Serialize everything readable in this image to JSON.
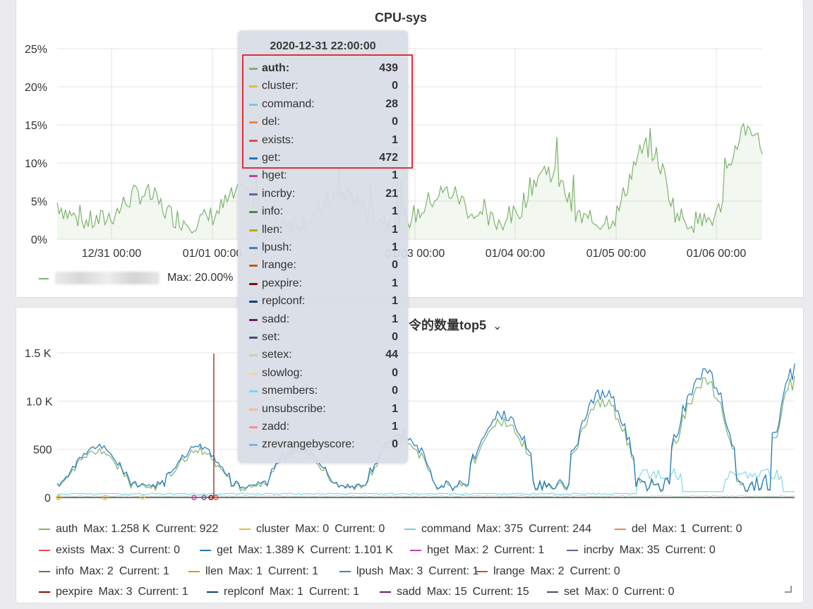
{
  "panel_cpu": {
    "title": "CPU-sys",
    "legend_max": "Max: 20.00%",
    "y_ticks": [
      "25%",
      "20%",
      "15%",
      "10%",
      "5%",
      "0%"
    ],
    "x_ticks": [
      "12/31 00:00",
      "01/01 00:00",
      "01/03 00:00",
      "01/04 00:00",
      "01/05 00:00",
      "01/06 00:00"
    ],
    "series_color": "#7eb26d"
  },
  "panel_cmd": {
    "title_fragment": "令的数量top5",
    "title_caret": "⌄",
    "y_ticks": [
      "1.5 K",
      "1.0 K",
      "500",
      "0"
    ],
    "legend": [
      {
        "name": "auth",
        "max": "Max: 1.258 K",
        "current": "Current: 922",
        "color": "#7eb26d"
      },
      {
        "name": "cluster",
        "max": "Max: 0",
        "current": "Current: 0",
        "color": "#eab839"
      },
      {
        "name": "command",
        "max": "Max: 375",
        "current": "Current: 244",
        "color": "#6ed0e0"
      },
      {
        "name": "del",
        "max": "Max: 1",
        "current": "Current: 0",
        "color": "#ef843c"
      },
      {
        "name": "exists",
        "max": "Max: 3",
        "current": "Current: 0",
        "color": "#e24d42"
      },
      {
        "name": "get",
        "max": "Max: 1.389 K",
        "current": "Current: 1.101 K",
        "color": "#1f78c1"
      },
      {
        "name": "hget",
        "max": "Max: 2",
        "current": "Current: 1",
        "color": "#ba43a9"
      },
      {
        "name": "incrby",
        "max": "Max: 35",
        "current": "Current: 0",
        "color": "#705da0"
      },
      {
        "name": "info",
        "max": "Max: 2",
        "current": "Current: 1",
        "color": "#508642"
      },
      {
        "name": "llen",
        "max": "Max: 1",
        "current": "Current: 1",
        "color": "#cca300"
      },
      {
        "name": "lpush",
        "max": "Max: 3",
        "current": "Current: 1",
        "color": "#447ebc"
      },
      {
        "name": "lrange",
        "max": "Max: 2",
        "current": "Current: 0",
        "color": "#c15c17"
      },
      {
        "name": "pexpire",
        "max": "Max: 3",
        "current": "Current: 1",
        "color": "#890f02"
      },
      {
        "name": "replconf",
        "max": "Max: 1",
        "current": "Current: 1",
        "color": "#0a437c"
      },
      {
        "name": "sadd",
        "max": "Max: 15",
        "current": "Current: 15",
        "color": "#6d1f62"
      },
      {
        "name": "set",
        "max": "Max: 0",
        "current": "Current: 0",
        "color": "#584477"
      }
    ]
  },
  "tooltip": {
    "date": "2020-12-31 22:00:00",
    "rows": [
      {
        "name": "auth:",
        "value": "439",
        "color": "#7eb26d"
      },
      {
        "name": "cluster:",
        "value": "0",
        "color": "#eab839"
      },
      {
        "name": "command:",
        "value": "28",
        "color": "#6ed0e0"
      },
      {
        "name": "del:",
        "value": "0",
        "color": "#ef843c"
      },
      {
        "name": "exists:",
        "value": "1",
        "color": "#e24d42"
      },
      {
        "name": "get:",
        "value": "472",
        "color": "#1f78c1"
      },
      {
        "name": "hget:",
        "value": "1",
        "color": "#ba43a9"
      },
      {
        "name": "incrby:",
        "value": "21",
        "color": "#705da0"
      },
      {
        "name": "info:",
        "value": "1",
        "color": "#508642"
      },
      {
        "name": "llen:",
        "value": "1",
        "color": "#cca300"
      },
      {
        "name": "lpush:",
        "value": "1",
        "color": "#447ebc"
      },
      {
        "name": "lrange:",
        "value": "0",
        "color": "#c15c17"
      },
      {
        "name": "pexpire:",
        "value": "1",
        "color": "#890f02"
      },
      {
        "name": "replconf:",
        "value": "1",
        "color": "#0a437c"
      },
      {
        "name": "sadd:",
        "value": "1",
        "color": "#6d1f62"
      },
      {
        "name": "set:",
        "value": "0",
        "color": "#584477"
      },
      {
        "name": "setex:",
        "value": "44",
        "color": "#b7dbab"
      },
      {
        "name": "slowlog:",
        "value": "0",
        "color": "#f4d598"
      },
      {
        "name": "smembers:",
        "value": "0",
        "color": "#70dbed"
      },
      {
        "name": "unsubscribe:",
        "value": "1",
        "color": "#f9ba8f"
      },
      {
        "name": "zadd:",
        "value": "1",
        "color": "#f29191"
      },
      {
        "name": "zrevrangebyscore:",
        "value": "0",
        "color": "#82b5d8"
      }
    ]
  }
}
